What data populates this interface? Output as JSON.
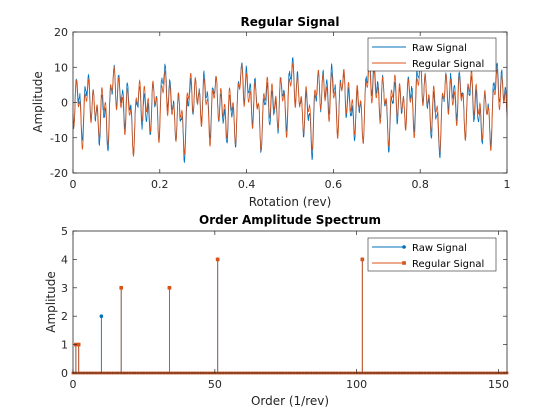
{
  "colors": {
    "raw": "#0072BD",
    "regular": "#D95319",
    "axis": "#262626"
  },
  "chart_data": [
    {
      "type": "line",
      "title": "Regular Signal",
      "xlabel": "Rotation (rev)",
      "ylabel": "Amplitude",
      "xlim": [
        0,
        1
      ],
      "ylim": [
        -20,
        20
      ],
      "xticks": [
        0,
        0.2,
        0.4,
        0.6,
        0.8,
        1
      ],
      "xtick_labels": [
        "0",
        "0.2",
        "0.4",
        "0.6",
        "0.8",
        "1"
      ],
      "yticks": [
        -20,
        -10,
        0,
        10,
        20
      ],
      "ytick_labels": [
        "-20",
        "-10",
        "0",
        "10",
        "20"
      ],
      "legend_position": "top-right",
      "signal_components": [
        {
          "order": 1,
          "amplitude": 1
        },
        {
          "order": 10,
          "amplitude": 2
        },
        {
          "order": 17,
          "amplitude": 3
        },
        {
          "order": 34,
          "amplitude": 3
        },
        {
          "order": 51,
          "amplitude": 4
        },
        {
          "order": 102,
          "amplitude": 4
        }
      ],
      "series": [
        {
          "name": "Raw Signal"
        },
        {
          "name": "Regular Signal"
        }
      ]
    },
    {
      "type": "stem",
      "title": "Order Amplitude Spectrum",
      "xlabel": "Order (1/rev)",
      "ylabel": "Amplitude",
      "xlim": [
        0,
        153
      ],
      "ylim": [
        0,
        5
      ],
      "xticks": [
        0,
        50,
        100,
        150
      ],
      "xtick_labels": [
        "0",
        "50",
        "100",
        "150"
      ],
      "yticks": [
        0,
        1,
        2,
        3,
        4,
        5
      ],
      "ytick_labels": [
        "0",
        "1",
        "2",
        "3",
        "4",
        "5"
      ],
      "legend_position": "top-right",
      "series": [
        {
          "name": "Raw Signal",
          "x": [
            1,
            2,
            10,
            17,
            34,
            51,
            102
          ],
          "y": [
            1,
            1,
            2,
            3,
            3,
            4,
            4
          ]
        },
        {
          "name": "Regular Signal",
          "x": [
            1,
            2,
            17,
            34,
            51,
            102
          ],
          "y": [
            1,
            1,
            3,
            3,
            4,
            4
          ]
        }
      ]
    }
  ]
}
